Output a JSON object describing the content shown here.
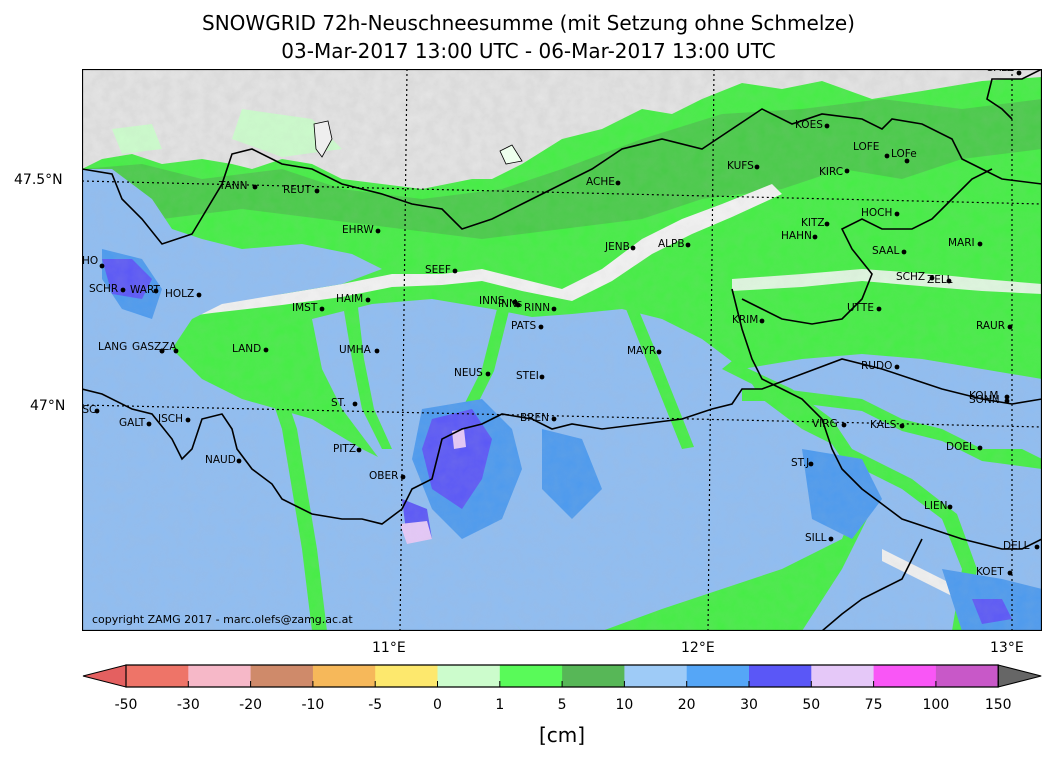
{
  "title": {
    "line1": "SNOWGRID 72h-Neuschneesumme (mit Setzung ohne Schmelze)",
    "line2": "03-Mar-2017 13:00 UTC - 06-Mar-2017 13:00 UTC"
  },
  "copyright": "copyright ZAMG 2017 - marc.olefs@zamg.ac.at",
  "axes": {
    "lat_labels": [
      "47.5°N",
      "47°N"
    ],
    "lon_labels": [
      "11°E",
      "12°E",
      "13°E"
    ]
  },
  "colorbar": {
    "unit": "[cm]",
    "ticks": [
      "-50",
      "-30",
      "-20",
      "-10",
      "-5",
      "0",
      "1",
      "5",
      "10",
      "20",
      "30",
      "50",
      "75",
      "100",
      "150"
    ],
    "colors": [
      "#ee7468",
      "#f6b8c8",
      "#cf8a6a",
      "#f6b85a",
      "#fde86d",
      "#ccfccc",
      "#59fa59",
      "#57b757",
      "#9ecbf7",
      "#55a6f7",
      "#5a57f7",
      "#e5c8f8",
      "#f956f6",
      "#c858c8"
    ],
    "under_color": "#e46060",
    "over_color": "#666666"
  },
  "map_colors": {
    "snow_free": "#e8e8e8",
    "light_green": "#ccfccc",
    "green": "#44f044",
    "dark_green": "#4cae4c",
    "light_blue": "#8fbdf2",
    "blue": "#4c9aef",
    "purple_blue": "#5a57f7",
    "lavender": "#e5c8f8",
    "border": "#000000"
  },
  "stations": [
    "SALZ",
    "KOES",
    "KUFS",
    "LOFE",
    "LOFe",
    "KIRC",
    "ACHE",
    "TANN",
    "REUT",
    "HOCH",
    "KITZ",
    "HAHN",
    "EHRW",
    "JENB",
    "ALPB",
    "MARI",
    "SAAL",
    "SCHO",
    "SEEF",
    "SCHZ",
    "ZELL",
    "SCHR",
    "WART",
    "HOLZ",
    "INNS",
    "INNs",
    "RINN",
    "IMST",
    "HAIM",
    "UTTE",
    "KRIM",
    "PATS",
    "RAUR",
    "LANG",
    "GASZ",
    "ZA",
    "LAND",
    "UMHA",
    "MAYR",
    "RUDO",
    "NEUS",
    "STEI",
    "ST.",
    "KOLM",
    "SONN",
    "BREN",
    "GALT",
    "ISCH",
    "VIRG",
    "KALS",
    "GASC",
    "DOEL",
    "PITZ",
    "NAUD",
    "ST.J",
    "OBER",
    "LIEN",
    "SILL",
    "DELL",
    "KOET"
  ]
}
